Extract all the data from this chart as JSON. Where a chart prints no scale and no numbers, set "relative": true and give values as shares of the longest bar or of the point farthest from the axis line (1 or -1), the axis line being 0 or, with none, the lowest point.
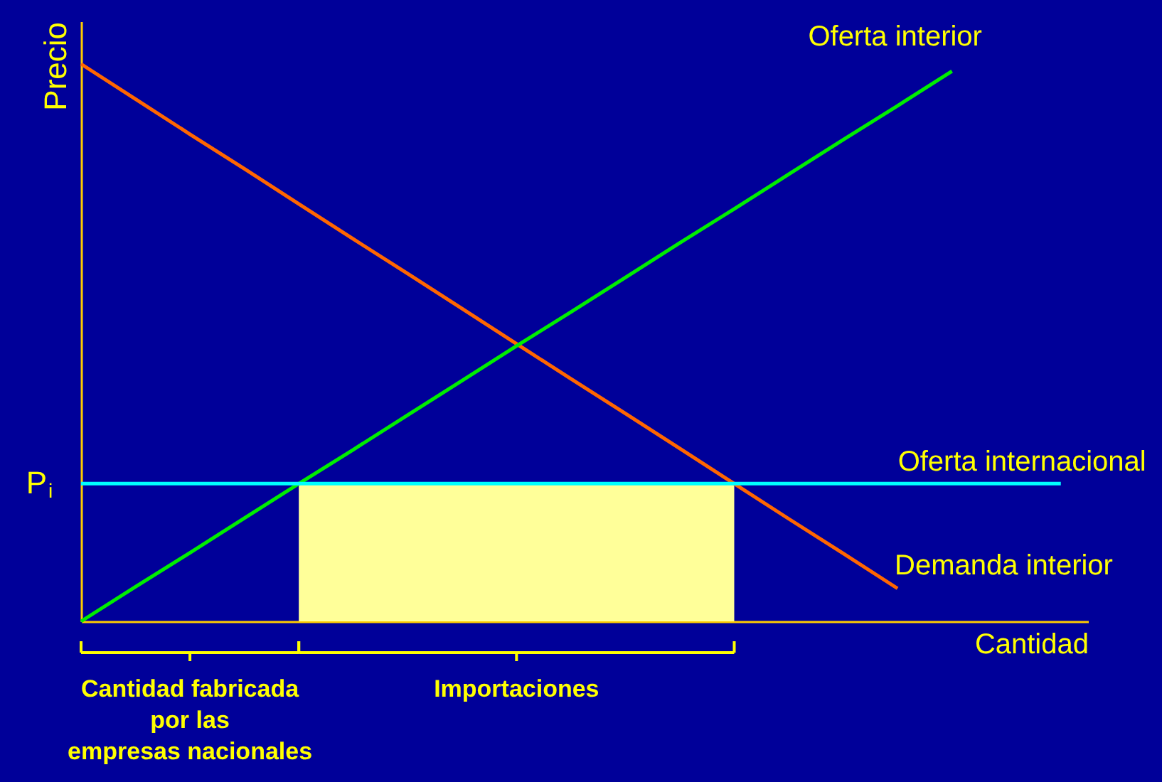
{
  "chart_data": {
    "type": "line",
    "relative": true,
    "xlabel": "Cantidad",
    "ylabel": "Precio",
    "tick_labels": false,
    "grid": false,
    "categories": [
      null,
      null,
      null,
      null,
      null,
      null,
      null,
      null,
      null,
      null,
      null,
      null,
      null,
      null,
      null,
      null,
      null,
      null,
      null
    ],
    "series": [
      {
        "type": "area",
        "color": "#ffff99",
        "values": [
          null,
          null,
          null,
          null,
          0.247,
          0.247,
          0.247,
          0.247,
          0.247,
          0.247,
          0.247,
          0.247,
          0.247,
          null,
          null,
          null,
          null,
          null,
          null
        ]
      },
      {
        "name": "Demanda interior",
        "color": "#ff6600",
        "values": [
          1,
          0.937,
          0.874,
          0.812,
          0.749,
          0.686,
          0.624,
          0.561,
          0.498,
          0.435,
          0.373,
          0.31,
          0.247,
          0.184,
          0.122,
          0.059,
          null,
          null,
          null
        ]
      },
      {
        "name": "Oferta interior",
        "color": "#00ee00",
        "values": [
          0,
          0.062,
          0.123,
          0.185,
          0.247,
          0.308,
          0.37,
          0.432,
          0.494,
          0.555,
          0.617,
          0.679,
          0.74,
          0.802,
          0.864,
          0.925,
          0.987,
          null,
          null
        ]
      },
      {
        "name": "Oferta internacional",
        "color": "#00ffff",
        "values": [
          0.247,
          0.247,
          0.247,
          0.247,
          0.247,
          0.247,
          0.247,
          0.247,
          0.247,
          0.247,
          0.247,
          0.247,
          0.247,
          0.247,
          0.247,
          0.247,
          0.247,
          0.247,
          0.247
        ]
      }
    ],
    "annotations": [
      "Cantidad fabricada\npor las\nempresas nacionales",
      "Importaciones",
      "P$_{i}$"
    ]
  }
}
